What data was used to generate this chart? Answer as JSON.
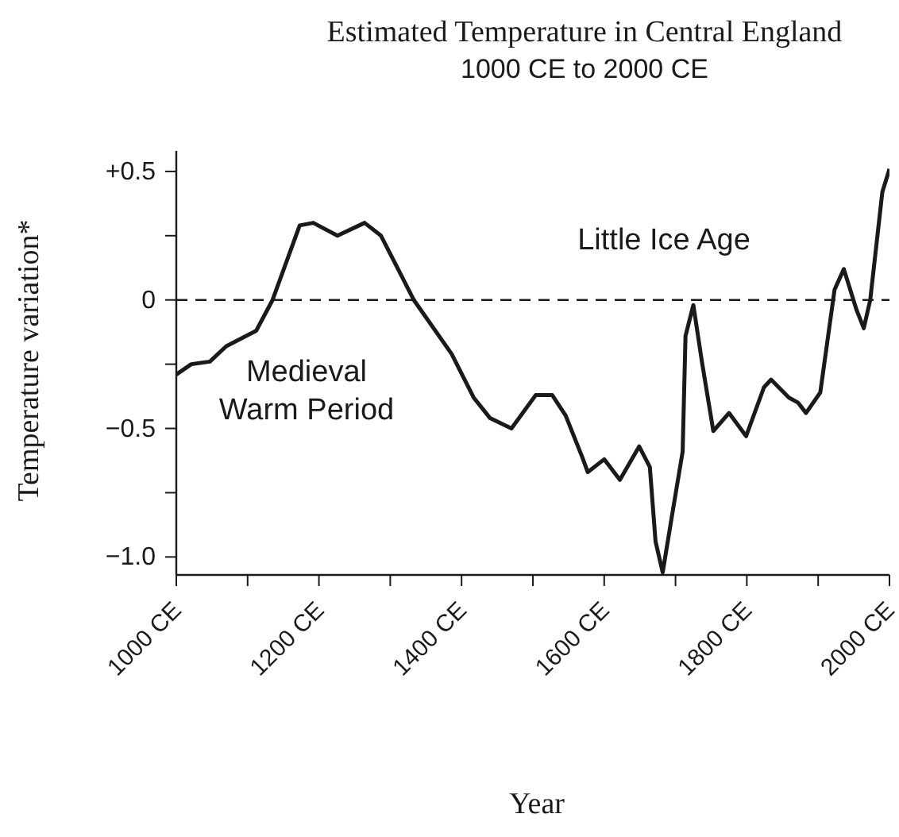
{
  "chart_data": {
    "type": "line",
    "title": "Estimated Temperature in Central England",
    "subtitle": "1000 CE to 2000 CE",
    "xlabel": "Year",
    "ylabel": "Temperature variation*",
    "annotations": [
      "Medieval Warm Period",
      "Little Ice Age"
    ],
    "x": [
      1000,
      1021,
      1047,
      1070,
      1112,
      1135,
      1173,
      1192,
      1226,
      1264,
      1287,
      1333,
      1386,
      1417,
      1440,
      1470,
      1504,
      1527,
      1546,
      1569,
      1577,
      1600,
      1622,
      1649,
      1664,
      1672,
      1682,
      1695,
      1710,
      1714,
      1725,
      1737,
      1753,
      1775,
      1799,
      1824,
      1834,
      1859,
      1872,
      1883,
      1903,
      1923,
      1936,
      1954,
      1964,
      1973,
      1990,
      2000
    ],
    "series": [
      {
        "color": "#1a1a1a",
        "values": [
          -0.29,
          -0.25,
          -0.24,
          -0.18,
          -0.12,
          0.0,
          0.29,
          0.3,
          0.25,
          0.3,
          0.25,
          0.0,
          -0.21,
          -0.38,
          -0.46,
          -0.5,
          -0.37,
          -0.37,
          -0.45,
          -0.61,
          -0.67,
          -0.62,
          -0.7,
          -0.57,
          -0.65,
          -0.94,
          -1.06,
          -0.84,
          -0.59,
          -0.14,
          -0.02,
          -0.24,
          -0.51,
          -0.44,
          -0.53,
          -0.34,
          -0.31,
          -0.38,
          -0.4,
          -0.44,
          -0.36,
          0.04,
          0.12,
          -0.04,
          -0.11,
          0.0,
          0.42,
          0.51
        ]
      }
    ],
    "xlim": [
      1000,
      2000
    ],
    "xticks": [
      {
        "value": 1000,
        "label": "1000 CE"
      },
      {
        "value": 1100,
        "label": null
      },
      {
        "value": 1200,
        "label": "1200 CE"
      },
      {
        "value": 1300,
        "label": null
      },
      {
        "value": 1400,
        "label": "1400 CE"
      },
      {
        "value": 1500,
        "label": null
      },
      {
        "value": 1600,
        "label": "1600 CE"
      },
      {
        "value": 1700,
        "label": null
      },
      {
        "value": 1800,
        "label": "1800 CE"
      },
      {
        "value": 1900,
        "label": null
      },
      {
        "value": 2000,
        "label": "2000 CE"
      }
    ],
    "ylim": [
      -1.07,
      0.58
    ],
    "yticks": [
      {
        "value": -1.0,
        "label": "−1.0"
      },
      {
        "value": -0.75,
        "label": null
      },
      {
        "value": -0.5,
        "label": "−0.5"
      },
      {
        "value": -0.25,
        "label": null
      },
      0,
      {
        "value": 0.25,
        "label": null
      },
      {
        "value": 0.5,
        "label": "+0.5"
      }
    ],
    "ref_lines": [
      {
        "axis": "y",
        "value": 0,
        "line_style": "dashed",
        "color": "#1a1a1a"
      }
    ],
    "marker": "none",
    "line_style": "solid"
  }
}
